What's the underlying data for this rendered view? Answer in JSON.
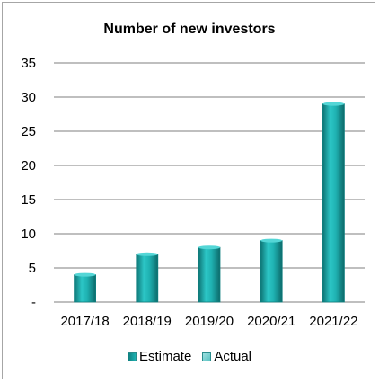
{
  "chart_data": {
    "type": "bar",
    "title": "Number of new investors",
    "categories": [
      "2017/18",
      "2018/19",
      "2019/20",
      "2020/21",
      "2021/22"
    ],
    "series": [
      {
        "name": "Estimate",
        "values": [
          4,
          7,
          8,
          9,
          29
        ]
      }
    ],
    "legend": [
      "Estimate",
      "Actual"
    ],
    "ylim": [
      0,
      35
    ],
    "yticks": [
      "-",
      "5",
      "10",
      "15",
      "20",
      "25",
      "30",
      "35"
    ],
    "xlabel": "",
    "ylabel": "",
    "grid": true,
    "legend_position": "bottom",
    "colors": {
      "estimate": "#1fb2b2",
      "estimate_dark": "#0f7f7f",
      "actual": "#5cc3c3",
      "gridline": "#7f7f7f"
    }
  }
}
